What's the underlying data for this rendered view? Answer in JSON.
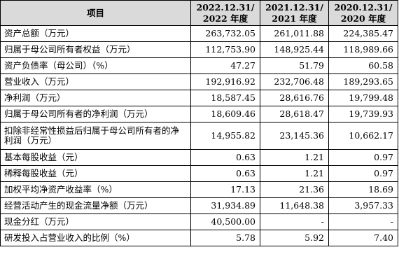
{
  "header": {
    "item": "项目",
    "cols": [
      {
        "line1": "2022.12.31/",
        "line2": "2022 年度"
      },
      {
        "line1": "2021.12.31/",
        "line2": "2021 年度"
      },
      {
        "line1": "2020.12.31/",
        "line2": "2020 年度"
      }
    ]
  },
  "rows": [
    {
      "label": "资产总额（万元）",
      "values": [
        "263,732.05",
        "261,011.88",
        "224,385.47"
      ]
    },
    {
      "label": "归属于母公司所有者权益（万元）",
      "values": [
        "112,753.90",
        "148,925.44",
        "118,989.66"
      ]
    },
    {
      "label": "资产负债率（母公司）（%）",
      "values": [
        "47.27",
        "51.79",
        "60.58"
      ]
    },
    {
      "label": "营业收入（万元）",
      "values": [
        "192,916.92",
        "232,706.48",
        "189,293.65"
      ]
    },
    {
      "label": "净利润（万元）",
      "values": [
        "18,587.45",
        "28,616.76",
        "19,799.48"
      ]
    },
    {
      "label": "归属于母公司所有者的净利润（万元）",
      "values": [
        "18,609.46",
        "28,618.47",
        "19,739.93"
      ]
    },
    {
      "label": "扣除非经常性损益后归属于母公司所有者的净利润（万元）",
      "values": [
        "14,955.82",
        "23,145.36",
        "10,662.17"
      ]
    },
    {
      "label": "基本每股收益（元）",
      "values": [
        "0.63",
        "1.21",
        "0.97"
      ]
    },
    {
      "label": "稀释每股收益（元）",
      "values": [
        "0.63",
        "1.21",
        "0.97"
      ]
    },
    {
      "label": "加权平均净资产收益率（%）",
      "values": [
        "17.13",
        "21.36",
        "18.69"
      ]
    },
    {
      "label": "经营活动产生的现金流量净额（万元）",
      "values": [
        "31,934.89",
        "11,648.38",
        "3,957.33"
      ]
    },
    {
      "label": "现金分红（万元）",
      "values": [
        "40,500.00",
        "-",
        "-"
      ]
    },
    {
      "label": "研发投入占营业收入的比例（%）",
      "values": [
        "5.78",
        "5.92",
        "7.40"
      ]
    }
  ]
}
